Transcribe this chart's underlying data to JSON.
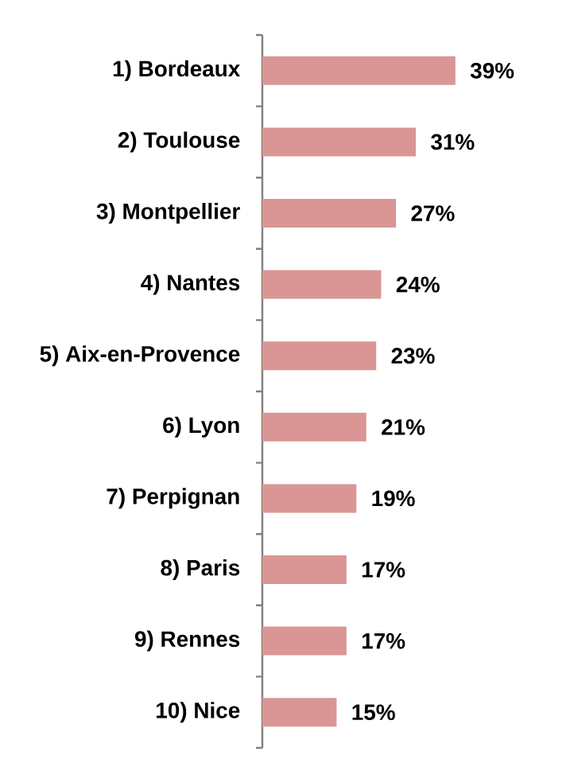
{
  "chart_data": {
    "type": "bar",
    "orientation": "horizontal",
    "categories": [
      "1) Bordeaux",
      "2) Toulouse",
      "3) Montpellier",
      "4) Nantes",
      "5) Aix-en-Provence",
      "6) Lyon",
      "7) Perpignan",
      "8) Paris",
      "9) Rennes",
      "10) Nice"
    ],
    "values": [
      39,
      31,
      27,
      24,
      23,
      21,
      19,
      17,
      17,
      15
    ],
    "value_labels": [
      "39%",
      "31%",
      "27%",
      "24%",
      "23%",
      "21%",
      "19%",
      "17%",
      "17%",
      "15%"
    ],
    "color": "#d99694"
  }
}
